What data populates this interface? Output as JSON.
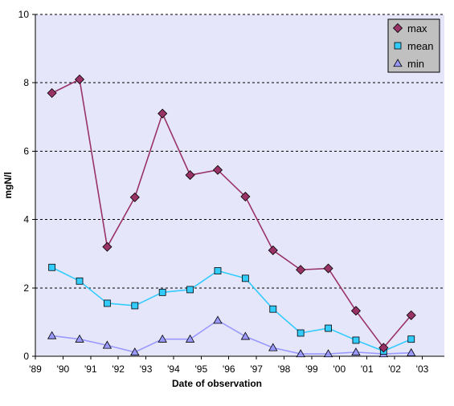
{
  "chart_data": {
    "type": "line",
    "xlabel": "Date of observation",
    "ylabel": "mgN/l",
    "ylim": [
      0,
      10
    ],
    "yticks": [
      "0",
      "2",
      "4",
      "6",
      "8",
      "10"
    ],
    "xlim": [
      1989,
      2003.8
    ],
    "xticks": [
      "'89",
      "'90",
      "'91",
      "'92",
      "'93",
      "'94",
      "'95",
      "'96",
      "'97",
      "'98",
      "'99",
      "'00",
      "'01",
      "'02",
      "'03"
    ],
    "x": [
      1989.6,
      1990.6,
      1991.6,
      1992.6,
      1993.6,
      1994.6,
      1995.6,
      1996.6,
      1997.6,
      1998.6,
      1999.6,
      2000.6,
      2001.6,
      2002.6
    ],
    "grid": "horizontal dashed",
    "legend_position": "top-right",
    "plot_background": "#e6e6fa",
    "series": [
      {
        "name": "max",
        "color": "#993366",
        "marker": "diamond",
        "values": [
          7.7,
          8.1,
          3.2,
          4.65,
          7.1,
          5.3,
          5.45,
          4.67,
          3.1,
          2.53,
          2.57,
          1.33,
          0.25,
          1.2
        ]
      },
      {
        "name": "mean",
        "color": "#33ccff",
        "marker": "square",
        "values": [
          2.6,
          2.2,
          1.55,
          1.48,
          1.87,
          1.95,
          2.5,
          2.28,
          1.38,
          0.68,
          0.82,
          0.47,
          0.15,
          0.5
        ]
      },
      {
        "name": "min",
        "color": "#9999ff",
        "marker": "triangle",
        "values": [
          0.6,
          0.5,
          0.32,
          0.12,
          0.5,
          0.5,
          1.05,
          0.58,
          0.25,
          0.07,
          0.07,
          0.12,
          0.07,
          0.1
        ]
      }
    ]
  }
}
